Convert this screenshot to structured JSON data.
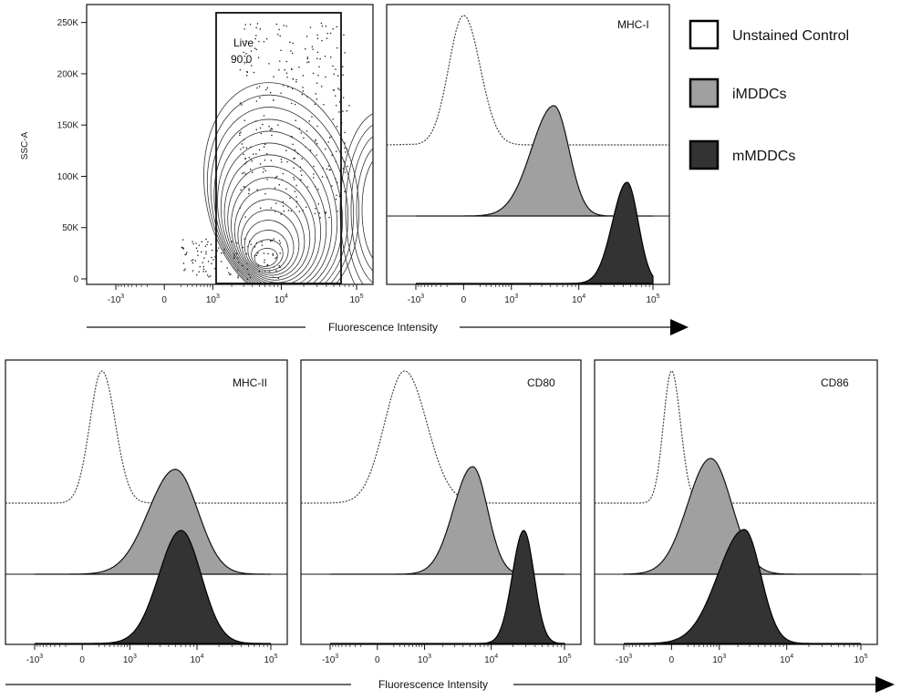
{
  "chart_data": [
    {
      "id": "scatter",
      "type": "scatter",
      "title": "",
      "xlabel": "",
      "ylabel": "SSC-A",
      "x_ticks": [
        {
          "value": -1000,
          "label": "-10",
          "exp": "3"
        },
        {
          "value": 0,
          "label": "0",
          "exp": ""
        },
        {
          "value": 1000,
          "label": "10",
          "exp": "3"
        },
        {
          "value": 10000,
          "label": "10",
          "exp": "4"
        },
        {
          "value": 100000,
          "label": "10",
          "exp": "5"
        }
      ],
      "y_ticks": [
        "0",
        "50K",
        "100K",
        "150K",
        "200K",
        "250K"
      ],
      "ylim": [
        0,
        262144
      ],
      "gate": {
        "name": "Live",
        "value": "90,0",
        "x_range": [
          1500,
          80000
        ],
        "y_range": [
          0,
          250000
        ]
      },
      "population_center": {
        "x": 6000,
        "y": 20000
      }
    },
    {
      "id": "mhc1",
      "type": "area",
      "label": "MHC-I",
      "x_ticks": [
        {
          "value": -1000,
          "label": "-10",
          "exp": "3"
        },
        {
          "value": 0,
          "label": "0",
          "exp": ""
        },
        {
          "value": 1000,
          "label": "10",
          "exp": "3"
        },
        {
          "value": 10000,
          "label": "10",
          "exp": "4"
        },
        {
          "value": 100000,
          "label": "10",
          "exp": "5"
        }
      ],
      "series": [
        {
          "name": "Unstained Control",
          "peak": 0,
          "style": "dotted"
        },
        {
          "name": "iMDDCs",
          "peak": 4500,
          "style": "gray"
        },
        {
          "name": "mMDDCs",
          "peak": 45000,
          "style": "dark"
        }
      ]
    },
    {
      "id": "mhc2",
      "type": "area",
      "label": "MHC-II",
      "x_ticks": [
        {
          "value": -1000,
          "label": "-10",
          "exp": "3"
        },
        {
          "value": 0,
          "label": "0",
          "exp": ""
        },
        {
          "value": 1000,
          "label": "10",
          "exp": "3"
        },
        {
          "value": 10000,
          "label": "10",
          "exp": "4"
        },
        {
          "value": 100000,
          "label": "10",
          "exp": "5"
        }
      ],
      "series": [
        {
          "name": "Unstained Control",
          "peak": 250,
          "style": "dotted"
        },
        {
          "name": "iMDDCs",
          "peak": 5000,
          "style": "gray"
        },
        {
          "name": "mMDDCs",
          "peak": 6000,
          "style": "dark"
        }
      ]
    },
    {
      "id": "cd80",
      "type": "area",
      "label": "CD80",
      "x_ticks": [
        {
          "value": -1000,
          "label": "-10",
          "exp": "3"
        },
        {
          "value": 0,
          "label": "0",
          "exp": ""
        },
        {
          "value": 1000,
          "label": "10",
          "exp": "3"
        },
        {
          "value": 10000,
          "label": "10",
          "exp": "4"
        },
        {
          "value": 100000,
          "label": "10",
          "exp": "5"
        }
      ],
      "series": [
        {
          "name": "Unstained Control",
          "peak": 400,
          "style": "dotted"
        },
        {
          "name": "iMDDCs",
          "peak": 5500,
          "style": "gray"
        },
        {
          "name": "mMDDCs",
          "peak": 28000,
          "style": "dark"
        }
      ]
    },
    {
      "id": "cd86",
      "type": "area",
      "label": "CD86",
      "x_ticks": [
        {
          "value": -1000,
          "label": "-10",
          "exp": "3"
        },
        {
          "value": 0,
          "label": "0",
          "exp": ""
        },
        {
          "value": 1000,
          "label": "10",
          "exp": "3"
        },
        {
          "value": 10000,
          "label": "10",
          "exp": "4"
        },
        {
          "value": 100000,
          "label": "10",
          "exp": "5"
        }
      ],
      "series": [
        {
          "name": "Unstained Control",
          "peak": 0,
          "style": "dotted"
        },
        {
          "name": "iMDDCs",
          "peak": 700,
          "style": "gray"
        },
        {
          "name": "mMDDCs",
          "peak": 2500,
          "style": "dark"
        }
      ]
    }
  ],
  "axis_titles": {
    "top": "Fluorescence Intensity",
    "bottom": "Fluorescence Intensity"
  },
  "legend": [
    {
      "label": "Unstained Control",
      "color": "#ffffff"
    },
    {
      "label": "iMDDCs",
      "color": "#a0a0a0"
    },
    {
      "label": "mMDDCs",
      "color": "#333333"
    }
  ],
  "colors": {
    "gray_fill": "#a0a0a0",
    "dark_fill": "#333333",
    "line": "#111111"
  }
}
